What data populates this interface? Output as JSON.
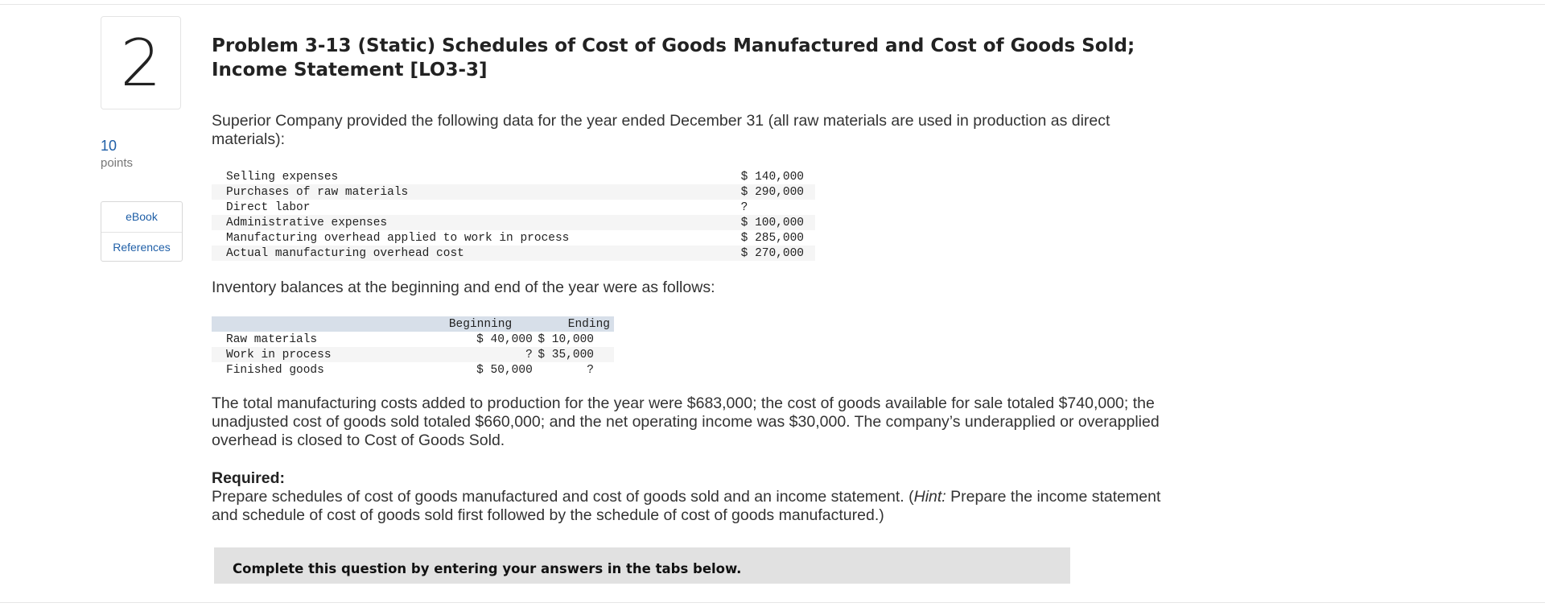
{
  "question": {
    "number": "2",
    "points_value": "10",
    "points_label": "points"
  },
  "sidebar": {
    "ebook_label": "eBook",
    "references_label": "References"
  },
  "problem": {
    "title": "Problem 3-13 (Static) Schedules of Cost of Goods Manufactured and Cost of Goods Sold; Income Statement [LO3-3]",
    "intro": "Superior Company provided the following data for the year ended December 31 (all raw materials are used in production as direct materials):",
    "data_rows": [
      {
        "label": "Selling expenses",
        "value": "$ 140,000"
      },
      {
        "label": "Purchases of raw materials",
        "value": "$ 290,000"
      },
      {
        "label": "Direct labor",
        "value": "?"
      },
      {
        "label": "Administrative expenses",
        "value": "$ 100,000"
      },
      {
        "label": "Manufacturing overhead applied to work in process",
        "value": "$ 285,000"
      },
      {
        "label": "Actual manufacturing overhead cost",
        "value": "$ 270,000"
      }
    ],
    "inventory_intro": "Inventory balances at the beginning and end of the year were as follows:",
    "inventory_headers": {
      "beginning": "Beginning",
      "ending": "Ending"
    },
    "inventory_rows": [
      {
        "label": "Raw materials",
        "beginning": "$ 40,000",
        "ending": "$ 10,000"
      },
      {
        "label": "Work in process",
        "beginning": "?",
        "ending": "$ 35,000"
      },
      {
        "label": "Finished goods",
        "beginning": "$ 50,000",
        "ending": "?"
      }
    ],
    "totals_paragraph": "The total manufacturing costs added to production for the year were $683,000; the cost of goods available for sale totaled $740,000; the unadjusted cost of goods sold totaled $660,000; and the net operating income was $30,000. The company’s underapplied or overapplied overhead is closed to Cost of Goods Sold.",
    "required_label": "Required:",
    "required_text_before": "Prepare schedules of cost of goods manufactured and cost of goods sold and an income statement. (",
    "required_hint": "Hint:",
    "required_text_after": " Prepare the income statement and schedule of cost of goods sold first followed by the schedule of cost of goods manufactured.)"
  },
  "banner": {
    "text": "Complete this question by entering your answers in the tabs below."
  }
}
